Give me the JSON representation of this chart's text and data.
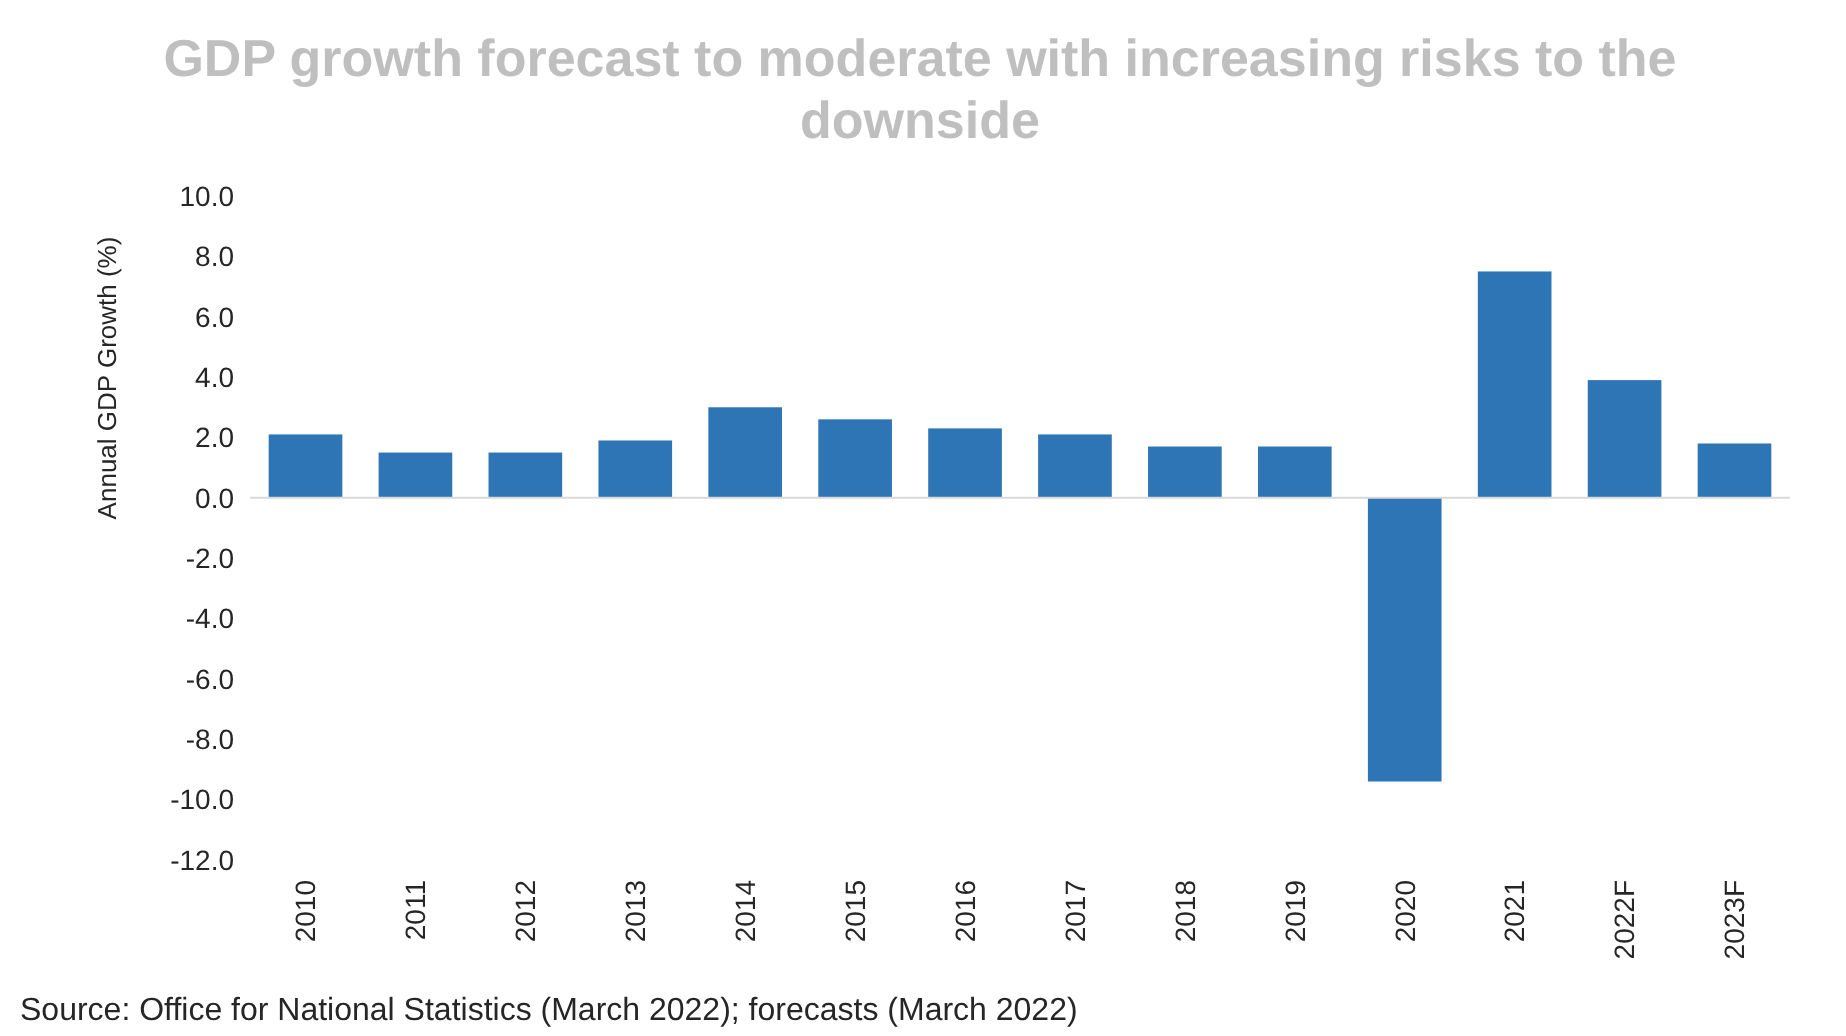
{
  "chart_data": {
    "type": "bar",
    "title": "GDP growth forecast to moderate with increasing risks to the downside",
    "ylabel": "Annual GDP Growth (%)",
    "categories": [
      "2010",
      "2011",
      "2012",
      "2013",
      "2014",
      "2015",
      "2016",
      "2017",
      "2018",
      "2019",
      "2020",
      "2021",
      "2022F",
      "2023F"
    ],
    "values": [
      2.1,
      1.5,
      1.5,
      1.9,
      3.0,
      2.6,
      2.3,
      2.1,
      1.7,
      1.7,
      -9.4,
      7.5,
      3.9,
      1.8
    ],
    "color": "#2e75b6",
    "ylim": [
      -12,
      10
    ],
    "yticks": [
      {
        "value": -12,
        "label": "-12.0"
      },
      {
        "value": -10,
        "label": "-10.0"
      },
      {
        "value": -8,
        "label": "-8.0"
      },
      {
        "value": -6,
        "label": "-6.0"
      },
      {
        "value": -4,
        "label": "-4.0"
      },
      {
        "value": -2,
        "label": "-2.0"
      },
      {
        "value": 0,
        "label": "0.0"
      },
      {
        "value": 2,
        "label": "2.0"
      },
      {
        "value": 4,
        "label": "4.0"
      },
      {
        "value": 6,
        "label": "6.0"
      },
      {
        "value": 8,
        "label": "8.0"
      },
      {
        "value": 10,
        "label": "10.0"
      }
    ],
    "annotations": [
      "Source: Office for National Statistics (March 2022); forecasts (March 2022)"
    ]
  }
}
